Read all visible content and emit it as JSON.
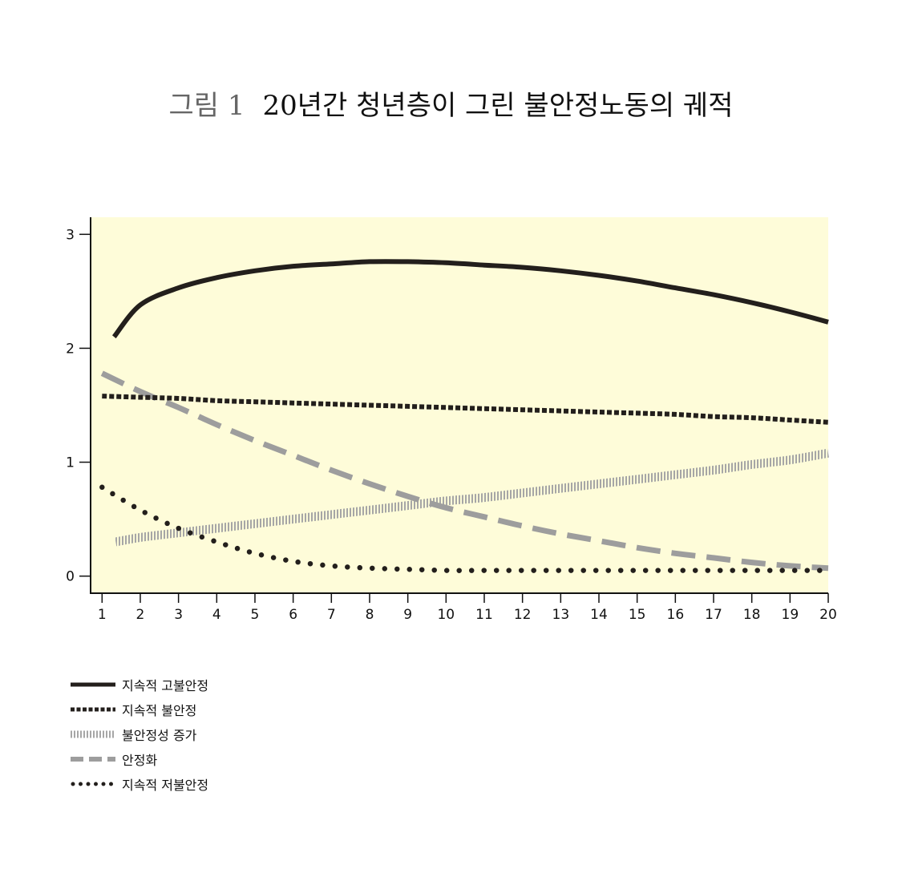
{
  "figure": {
    "label": "그림 1",
    "title": "20년간 청년층이 그린 불안정노동의 궤적"
  },
  "chart_data": {
    "type": "line",
    "x": [
      1,
      2,
      3,
      4,
      5,
      6,
      7,
      8,
      9,
      10,
      11,
      12,
      13,
      14,
      15,
      16,
      17,
      18,
      19,
      20
    ],
    "xlim": [
      0.7,
      20
    ],
    "ylim": [
      -0.15,
      3.15
    ],
    "yticks": [
      0,
      1,
      2,
      3
    ],
    "xlabel": "",
    "ylabel": "",
    "plot_background": "#fefcd9",
    "grid": false,
    "legend_position": "bottom-left",
    "series": [
      {
        "name": "지속적 고불안정",
        "style": "solid",
        "color": "#231f1c",
        "values": [
          2.1,
          2.38,
          2.53,
          2.62,
          2.68,
          2.72,
          2.74,
          2.76,
          2.76,
          2.75,
          2.73,
          2.71,
          2.68,
          2.64,
          2.59,
          2.53,
          2.47,
          2.4,
          2.32,
          2.23
        ]
      },
      {
        "name": "지속적 불안정",
        "style": "dashed",
        "color": "#231f1c",
        "values": [
          1.58,
          1.57,
          1.56,
          1.54,
          1.53,
          1.52,
          1.51,
          1.5,
          1.49,
          1.48,
          1.47,
          1.46,
          1.45,
          1.44,
          1.43,
          1.42,
          1.4,
          1.39,
          1.37,
          1.35
        ]
      },
      {
        "name": "불안정성 증가",
        "style": "hatched",
        "color": "#a6a6a6",
        "values": [
          0.3,
          0.34,
          0.38,
          0.42,
          0.46,
          0.5,
          0.54,
          0.58,
          0.62,
          0.66,
          0.69,
          0.73,
          0.77,
          0.81,
          0.85,
          0.89,
          0.93,
          0.98,
          1.02,
          1.08
        ]
      },
      {
        "name": "안정화",
        "style": "longdash",
        "color": "#9d9d9d",
        "values": [
          1.78,
          1.62,
          1.48,
          1.33,
          1.19,
          1.06,
          0.93,
          0.81,
          0.7,
          0.6,
          0.52,
          0.44,
          0.37,
          0.31,
          0.25,
          0.2,
          0.16,
          0.12,
          0.09,
          0.07
        ]
      },
      {
        "name": "지속적 저불안정",
        "style": "dotted",
        "color": "#231f1c",
        "values": [
          0.78,
          0.58,
          0.42,
          0.3,
          0.2,
          0.13,
          0.09,
          0.07,
          0.06,
          0.05,
          0.05,
          0.05,
          0.05,
          0.05,
          0.05,
          0.05,
          0.05,
          0.05,
          0.05,
          0.05
        ]
      }
    ]
  }
}
